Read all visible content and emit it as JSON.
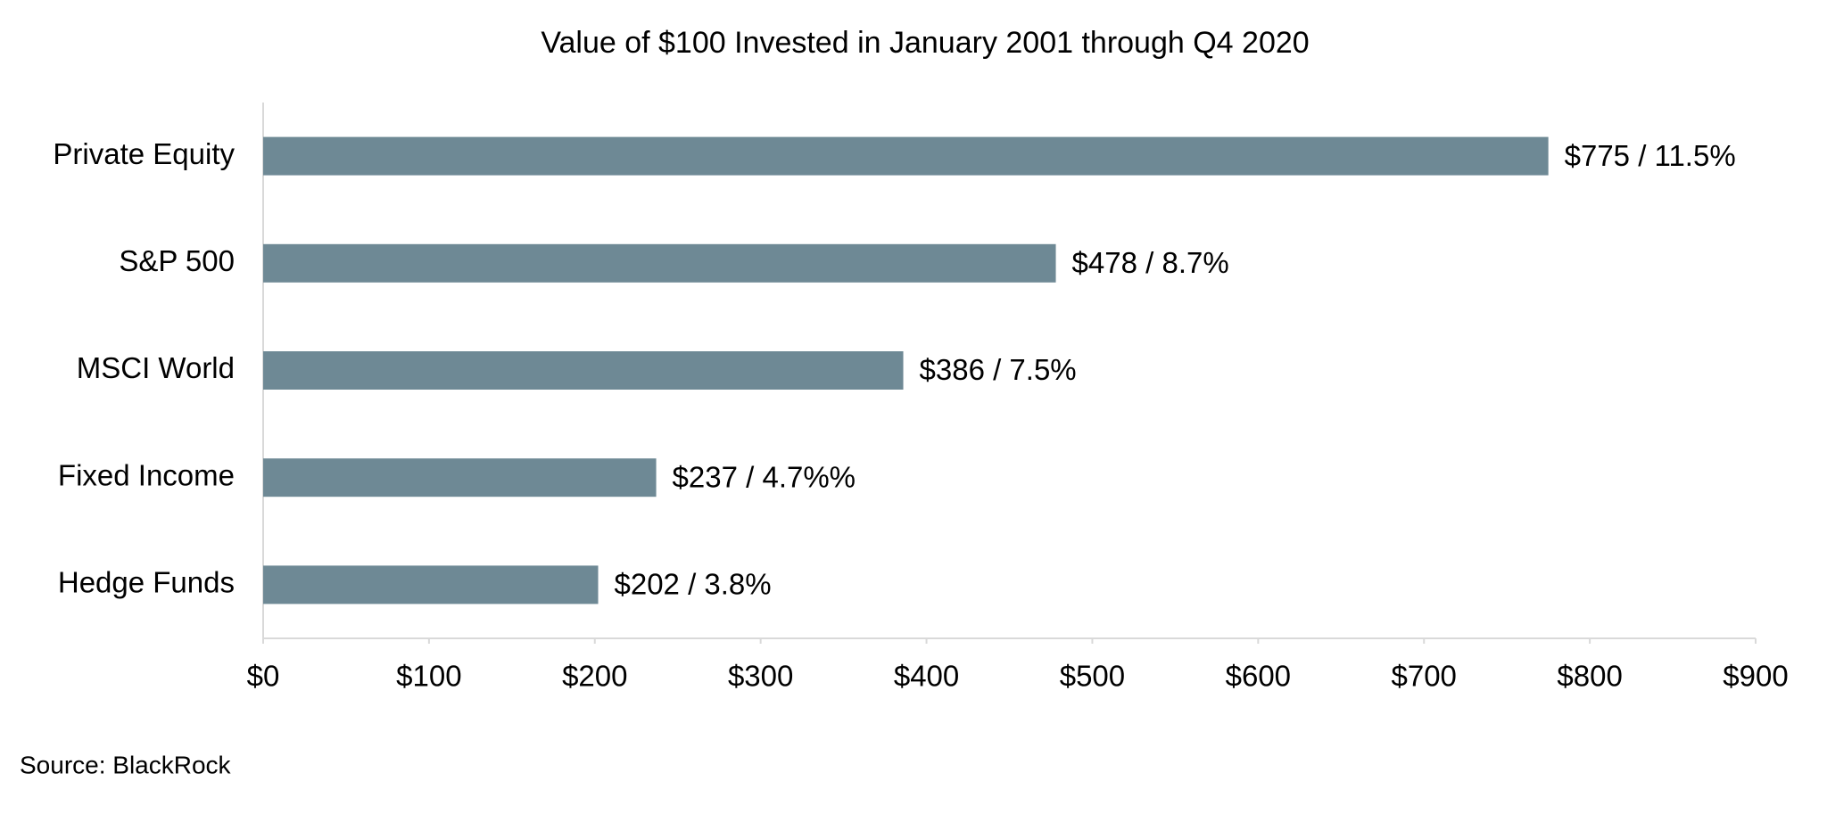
{
  "chart_data": {
    "type": "bar",
    "orientation": "horizontal",
    "title": "Value of $100 Invested in January 2001 through Q4 2020",
    "categories": [
      "Private Equity",
      "S&P 500",
      "MSCI World",
      "Fixed Income",
      "Hedge Funds"
    ],
    "values": [
      775,
      478,
      386,
      237,
      202
    ],
    "value_labels": [
      "$775 / 11.5%",
      "$478 / 8.7%",
      "$386 / 7.5%",
      "$237 / 4.7%%",
      "$202 / 3.8%"
    ],
    "color": "#6e8995",
    "xlim": [
      0,
      900
    ],
    "xticks": [
      {
        "value": 0,
        "label": "$0"
      },
      {
        "value": 100,
        "label": "$100"
      },
      {
        "value": 200,
        "label": "$200"
      },
      {
        "value": 300,
        "label": "$300"
      },
      {
        "value": 400,
        "label": "$400"
      },
      {
        "value": 500,
        "label": "$500"
      },
      {
        "value": 600,
        "label": "$600"
      },
      {
        "value": 700,
        "label": "$700"
      },
      {
        "value": 800,
        "label": "$800"
      },
      {
        "value": 900,
        "label": "$900"
      }
    ],
    "grid": false,
    "source": "Source: BlackRock"
  }
}
